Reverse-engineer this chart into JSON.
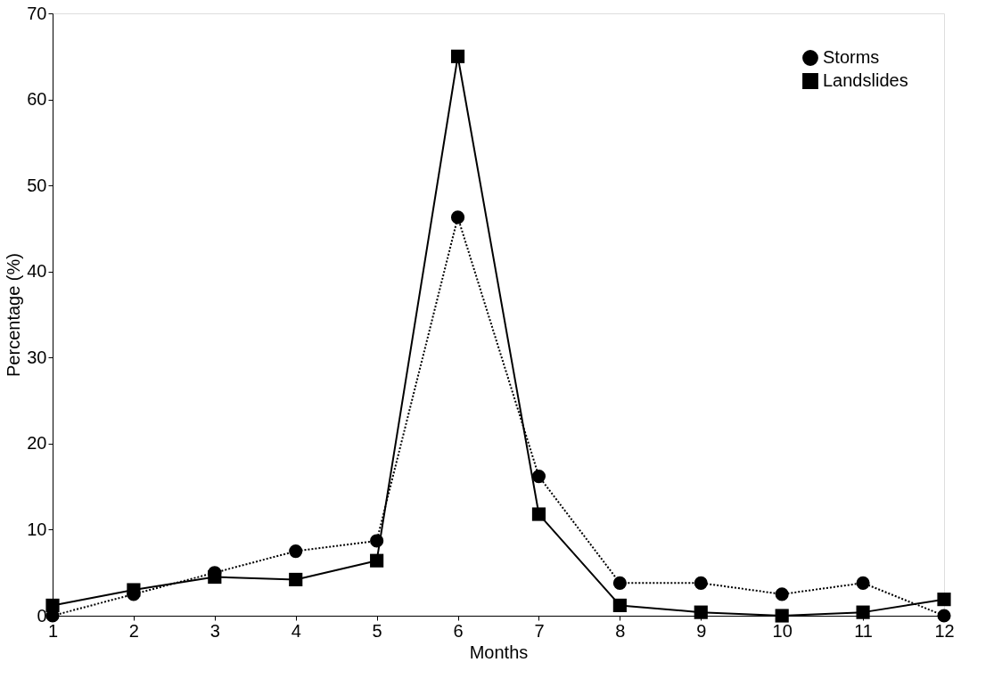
{
  "chart_data": {
    "type": "line",
    "xlabel": "Months",
    "ylabel": "Percentage (%)",
    "x": [
      1,
      2,
      3,
      4,
      5,
      6,
      7,
      8,
      9,
      10,
      11,
      12
    ],
    "series": [
      {
        "name": "Storms",
        "color": "#000000",
        "marker": "circle",
        "line_style": "dotted",
        "values": [
          0,
          2.5,
          5,
          7.5,
          8.7,
          46.3,
          16.2,
          3.8,
          3.8,
          2.5,
          3.8,
          0
        ]
      },
      {
        "name": "Landslides",
        "color": "#000000",
        "marker": "square",
        "line_style": "solid",
        "values": [
          1.2,
          3.0,
          4.5,
          4.2,
          6.4,
          65,
          11.8,
          1.2,
          0.4,
          0,
          0.4,
          1.9
        ]
      }
    ],
    "xlim": [
      1,
      12
    ],
    "xticks": [
      1,
      2,
      3,
      4,
      5,
      6,
      7,
      8,
      9,
      10,
      11,
      12
    ],
    "ylim": [
      0,
      70
    ],
    "yticks": [
      0,
      10,
      20,
      30,
      40,
      50,
      60,
      70
    ],
    "grid": false,
    "legend": "top right"
  }
}
